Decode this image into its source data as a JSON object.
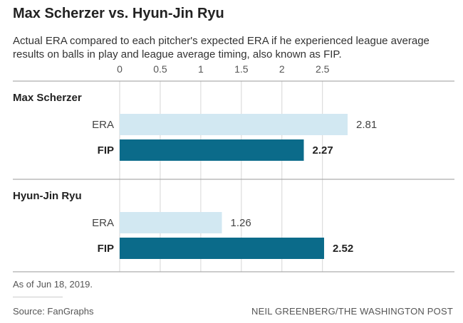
{
  "header": {
    "title": "Max Scherzer vs. Hyun-Jin Ryu",
    "subtitle": "Actual ERA compared to each pitcher's expected ERA if he experienced league average results on balls in play and league average timing, also known as FIP."
  },
  "footer": {
    "note": "As of Jun 18, 2019.",
    "source": "Source: FanGraphs",
    "credit": "NEIL GREENBERG/THE WASHINGTON POST"
  },
  "colors": {
    "era": "#d2e8f2",
    "fip": "#0b6b8a",
    "text": "#222222",
    "muted": "#555555",
    "grid": "#d6d6d6",
    "rule": "#9a9a9a"
  },
  "chart_data": {
    "type": "bar",
    "orientation": "horizontal",
    "xlim": [
      0,
      2.81
    ],
    "ticks": [
      0,
      0.5,
      1,
      1.5,
      2,
      2.5
    ],
    "tick_labels": [
      "0",
      "0.5",
      "1",
      "1.5",
      "2",
      "2.5"
    ],
    "grid": true,
    "groups": [
      {
        "name": "Max Scherzer",
        "bars": [
          {
            "label": "ERA",
            "value": 2.81,
            "value_label": "2.81"
          },
          {
            "label": "FIP",
            "value": 2.27,
            "value_label": "2.27"
          }
        ]
      },
      {
        "name": "Hyun-Jin Ryu",
        "bars": [
          {
            "label": "ERA",
            "value": 1.26,
            "value_label": "1.26"
          },
          {
            "label": "FIP",
            "value": 2.52,
            "value_label": "2.52"
          }
        ]
      }
    ]
  }
}
